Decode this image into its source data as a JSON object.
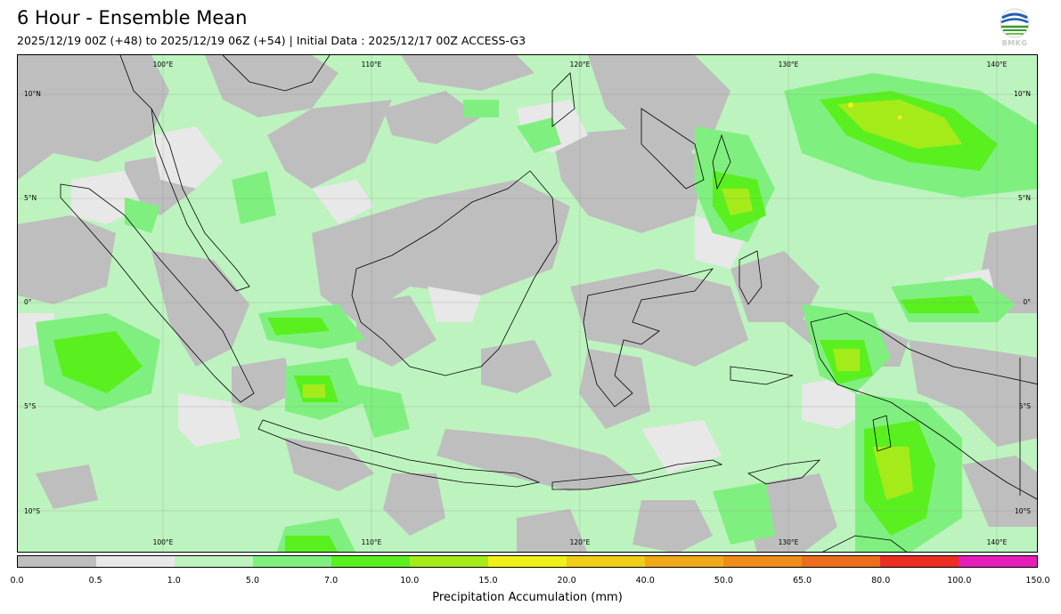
{
  "header": {
    "title": "6 Hour - Ensemble Mean",
    "subtitle": "2025/12/19 00Z (+48) to 2025/12/19 06Z (+54) | Initial Data : 2025/12/17 00Z ACCESS-G3",
    "logo_text": "BMKG"
  },
  "map": {
    "lon_labels": [
      "100°E",
      "110°E",
      "120°E",
      "130°E",
      "140°E"
    ],
    "lat_labels": [
      "10°N",
      "5°N",
      "0°",
      "5°S",
      "10°S"
    ],
    "lon_range": [
      93,
      142
    ],
    "lat_range": [
      -12,
      12
    ]
  },
  "legend": {
    "label": "Precipitation Accumulation (mm)",
    "ticks": [
      "0.0",
      "0.5",
      "1.0",
      "5.0",
      "7.0",
      "10.0",
      "15.0",
      "20.0",
      "40.0",
      "50.0",
      "65.0",
      "80.0",
      "100.0",
      "150.0"
    ],
    "colors": [
      "#bebebe",
      "#e8e8e8",
      "#bdf3bf",
      "#7ff07f",
      "#5af020",
      "#a5eb1a",
      "#f0f019",
      "#f0cd19",
      "#f0aa19",
      "#f08c19",
      "#eb6e1e",
      "#eb2d23",
      "#e61eb9"
    ]
  }
}
